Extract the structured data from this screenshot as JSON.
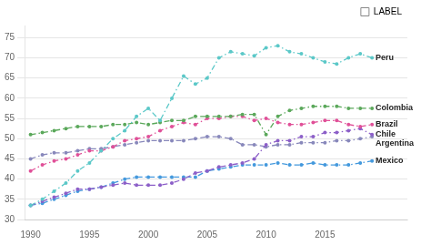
{
  "chart_data": {
    "type": "line",
    "x": [
      1990,
      1991,
      1992,
      1993,
      1994,
      1995,
      1996,
      1997,
      1998,
      1999,
      2000,
      2001,
      2002,
      2003,
      2004,
      2005,
      2006,
      2007,
      2008,
      2009,
      2010,
      2011,
      2012,
      2013,
      2014,
      2015,
      2016,
      2017,
      2018,
      2019
    ],
    "series": [
      {
        "name": "Peru",
        "color": "#5BC8C8",
        "values": [
          33.5,
          35.0,
          37.0,
          39.0,
          42.0,
          44.0,
          47.0,
          50.0,
          52.0,
          55.5,
          57.5,
          54.5,
          60.0,
          65.5,
          63.5,
          65.0,
          70.0,
          71.5,
          71.0,
          70.5,
          72.5,
          73.0,
          71.5,
          71.0,
          70.0,
          69.0,
          68.5,
          70.0,
          71.0,
          70.0
        ]
      },
      {
        "name": "Colombia",
        "color": "#5BA85B",
        "values": [
          51.0,
          51.5,
          52.0,
          52.5,
          53.0,
          53.0,
          53.0,
          53.5,
          53.5,
          54.0,
          53.5,
          54.0,
          54.5,
          54.5,
          55.5,
          55.5,
          55.5,
          55.5,
          56.0,
          56.0,
          51.0,
          55.5,
          57.0,
          57.5,
          58.0,
          58.0,
          58.0,
          57.5,
          57.5,
          57.5
        ]
      },
      {
        "name": "Brazil",
        "color": "#E05098",
        "values": [
          42.0,
          43.5,
          44.5,
          45.0,
          46.0,
          47.0,
          47.0,
          48.0,
          49.5,
          50.0,
          50.5,
          52.0,
          53.0,
          54.0,
          53.5,
          55.0,
          55.0,
          55.5,
          55.5,
          54.5,
          55.0,
          54.0,
          53.5,
          53.5,
          54.0,
          54.5,
          54.5,
          53.5,
          53.0,
          53.5
        ]
      },
      {
        "name": "Chile",
        "color": "#8C5FC8",
        "values": [
          33.5,
          34.5,
          35.5,
          36.5,
          37.5,
          37.5,
          38.0,
          38.5,
          39.0,
          38.5,
          38.5,
          38.5,
          39.0,
          40.0,
          41.5,
          42.0,
          43.0,
          43.5,
          44.0,
          45.0,
          48.5,
          49.5,
          49.5,
          50.5,
          50.5,
          51.5,
          51.5,
          52.0,
          52.5,
          51.0
        ]
      },
      {
        "name": "Argentina",
        "color": "#8888BB",
        "values": [
          45.0,
          46.0,
          46.5,
          46.5,
          47.0,
          47.5,
          47.5,
          48.0,
          48.5,
          49.0,
          49.5,
          49.5,
          49.5,
          49.5,
          50.0,
          50.5,
          50.5,
          50.0,
          48.5,
          48.5,
          48.0,
          48.5,
          48.5,
          49.0,
          49.0,
          49.0,
          49.5,
          49.5,
          50.0,
          50.5
        ]
      },
      {
        "name": "Mexico",
        "color": "#4499DD",
        "values": [
          33.5,
          34.0,
          35.0,
          36.0,
          37.0,
          37.5,
          38.0,
          39.0,
          40.0,
          40.5,
          40.5,
          40.5,
          40.5,
          40.5,
          40.5,
          42.0,
          42.5,
          43.0,
          43.5,
          43.5,
          43.5,
          44.0,
          43.5,
          43.5,
          44.0,
          43.5,
          43.5,
          43.5,
          44.0,
          44.5
        ]
      }
    ],
    "xlim": [
      1989.5,
      2022
    ],
    "xticks": [
      1990,
      1995,
      2000,
      2005,
      2010,
      2015
    ],
    "ylim": [
      30,
      78
    ],
    "yticks": [
      30,
      35,
      40,
      45,
      50,
      55,
      60,
      65,
      70,
      75
    ],
    "grid": "y",
    "legend": "upper right",
    "legend_label": "LABEL",
    "marker": "circle",
    "line_style": "dashdot",
    "annotations": [
      {
        "text": "Peru",
        "x": 2019.3,
        "y": 70.0
      },
      {
        "text": "Colombia",
        "x": 2019.3,
        "y": 57.5
      },
      {
        "text": "Brazil",
        "x": 2019.3,
        "y": 53.5
      },
      {
        "text": "Chile",
        "x": 2019.3,
        "y": 51.0
      },
      {
        "text": "Argentina",
        "x": 2019.3,
        "y": 50.5
      },
      {
        "text": "Mexico",
        "x": 2019.3,
        "y": 44.5
      }
    ]
  }
}
